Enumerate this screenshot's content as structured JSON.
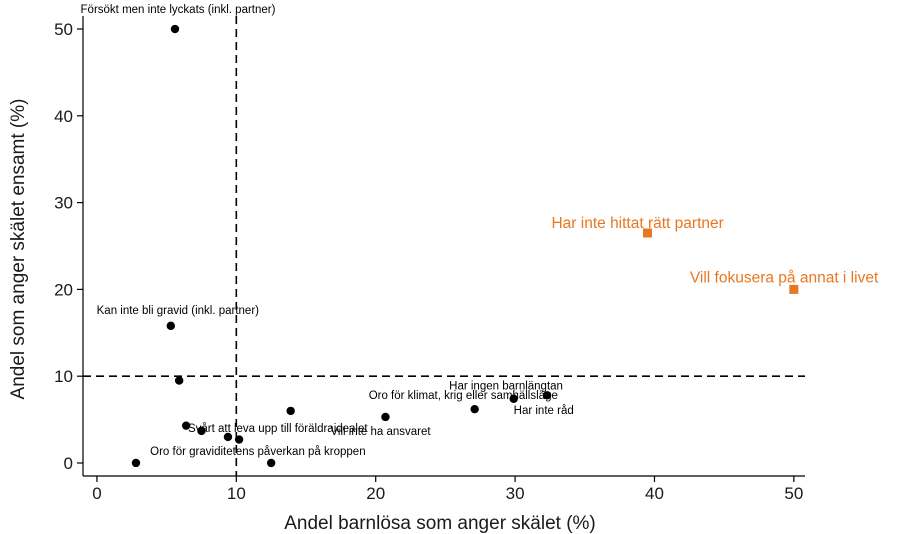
{
  "chart_data": {
    "type": "scatter",
    "xlabel": "Andel barnlösa som anger skälet (%)",
    "ylabel": "Andel som anger skälet ensamt (%)",
    "xlim": [
      -1,
      50.8
    ],
    "ylim": [
      -1.5,
      51.5
    ],
    "xticks": [
      0,
      10,
      20,
      30,
      40,
      50
    ],
    "yticks": [
      0,
      10,
      20,
      30,
      40,
      50
    ],
    "xtick_labels": [
      "0",
      "10",
      "20",
      "30",
      "40",
      "50"
    ],
    "ytick_labels": [
      "0",
      "10",
      "20",
      "30",
      "40",
      "50"
    ],
    "reference_lines": {
      "x": 10,
      "y": 10,
      "style": "dashed"
    },
    "grid": false,
    "colors": {
      "default": "#000000",
      "highlight": "#e87722"
    },
    "points": [
      {
        "x": 5.6,
        "y": 50.0,
        "label": "Försökt men inte lyckats (inkl. partner)"
      },
      {
        "x": 5.3,
        "y": 15.8,
        "label": "Kan inte bli gravid (inkl. partner)"
      },
      {
        "x": 5.9,
        "y": 9.5,
        "label": ""
      },
      {
        "x": 2.8,
        "y": 0.0,
        "label": ""
      },
      {
        "x": 6.4,
        "y": 4.3,
        "label": ""
      },
      {
        "x": 7.5,
        "y": 3.7,
        "label": ""
      },
      {
        "x": 9.4,
        "y": 3.0,
        "label": "Svårt att leva upp till föräldraidealet"
      },
      {
        "x": 10.2,
        "y": 2.7,
        "label": ""
      },
      {
        "x": 12.5,
        "y": 0.0,
        "label": "Oro för graviditetens påverkan på kroppen"
      },
      {
        "x": 13.9,
        "y": 6.0,
        "label": ""
      },
      {
        "x": 20.7,
        "y": 5.3,
        "label": "Vill inte ha ansvaret"
      },
      {
        "x": 27.1,
        "y": 6.2,
        "label": "Har inte råd"
      },
      {
        "x": 29.9,
        "y": 7.4,
        "label": "Oro för klimat, krig eller samhällsläge"
      },
      {
        "x": 32.3,
        "y": 7.8,
        "label": "Har ingen barnlängtan"
      },
      {
        "x": 39.5,
        "y": 26.5,
        "label": "Har inte hittat rätt partner",
        "highlight": true
      },
      {
        "x": 50.0,
        "y": 20.0,
        "label": "Vill fokusera på annat i livet",
        "highlight": true
      }
    ]
  }
}
